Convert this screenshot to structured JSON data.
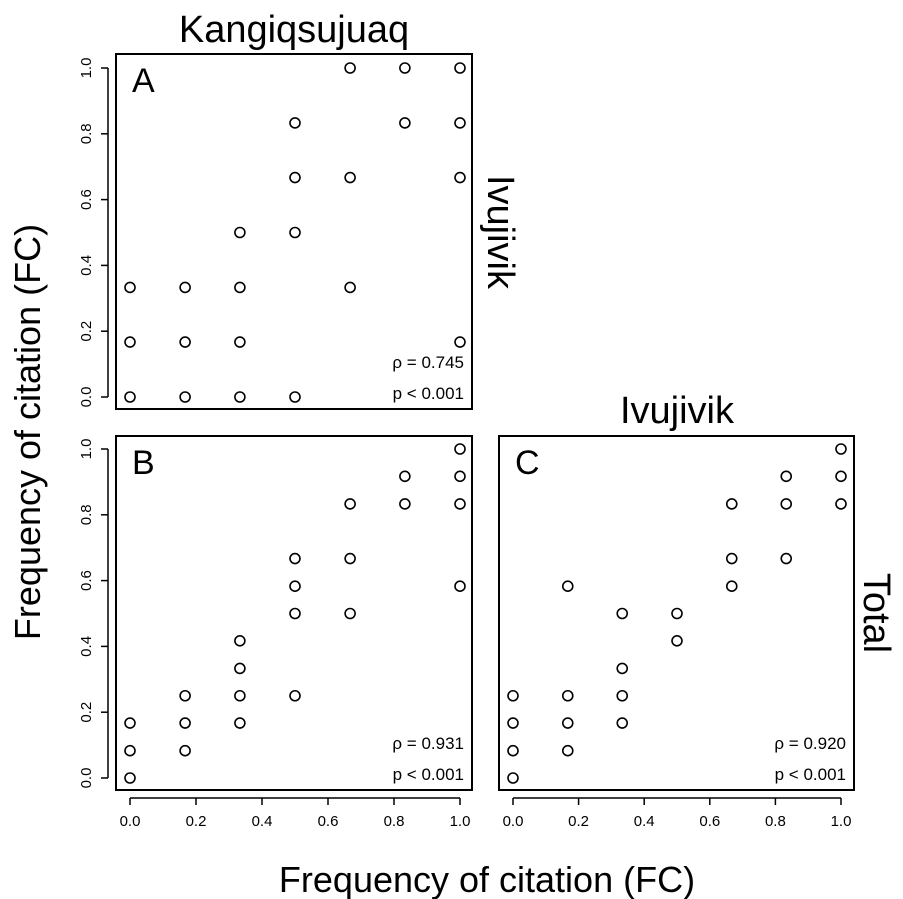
{
  "figure": {
    "ylabel": "Frequency of citation (FC)",
    "xlabel": "Frequency of citation (FC)"
  },
  "chart_data": [
    {
      "type": "scatter",
      "panel": "A",
      "title": "Kangiqsujuaq",
      "side_label": "Ivujivik",
      "rho": "ρ = 0.745",
      "p": "p < 0.001",
      "xlim": [
        0,
        1
      ],
      "ylim": [
        0,
        1
      ],
      "x_ticks_shown": false,
      "y_ticks": [
        "0.0",
        "0.2",
        "0.4",
        "0.6",
        "0.8",
        "1.0"
      ],
      "points": [
        [
          0,
          0
        ],
        [
          0,
          0.167
        ],
        [
          0,
          0.333
        ],
        [
          0.167,
          0
        ],
        [
          0.167,
          0.167
        ],
        [
          0.167,
          0.333
        ],
        [
          0.333,
          0
        ],
        [
          0.333,
          0.167
        ],
        [
          0.333,
          0.333
        ],
        [
          0.333,
          0.5
        ],
        [
          0.5,
          0
        ],
        [
          0.5,
          0.5
        ],
        [
          0.5,
          0.667
        ],
        [
          0.5,
          0.833
        ],
        [
          0.667,
          0.333
        ],
        [
          0.667,
          0.667
        ],
        [
          0.667,
          1.0
        ],
        [
          0.833,
          0.833
        ],
        [
          0.833,
          1.0
        ],
        [
          1.0,
          0.167
        ],
        [
          1.0,
          0.667
        ],
        [
          1.0,
          0.833
        ],
        [
          1.0,
          1.0
        ]
      ]
    },
    {
      "type": "scatter",
      "panel": "B",
      "title": "",
      "side_label": "",
      "rho": "ρ = 0.931",
      "p": "p < 0.001",
      "xlim": [
        0,
        1
      ],
      "ylim": [
        0,
        1
      ],
      "x_ticks": [
        "0.0",
        "0.2",
        "0.4",
        "0.6",
        "0.8",
        "1.0"
      ],
      "y_ticks": [
        "0.0",
        "0.2",
        "0.4",
        "0.6",
        "0.8",
        "1.0"
      ],
      "points": [
        [
          0,
          0
        ],
        [
          0,
          0.083
        ],
        [
          0,
          0.167
        ],
        [
          0.167,
          0.083
        ],
        [
          0.167,
          0.167
        ],
        [
          0.167,
          0.25
        ],
        [
          0.333,
          0.167
        ],
        [
          0.333,
          0.25
        ],
        [
          0.333,
          0.333
        ],
        [
          0.333,
          0.417
        ],
        [
          0.5,
          0.25
        ],
        [
          0.5,
          0.5
        ],
        [
          0.5,
          0.583
        ],
        [
          0.5,
          0.667
        ],
        [
          0.667,
          0.5
        ],
        [
          0.667,
          0.667
        ],
        [
          0.667,
          0.833
        ],
        [
          0.833,
          0.833
        ],
        [
          0.833,
          0.917
        ],
        [
          1.0,
          0.583
        ],
        [
          1.0,
          0.833
        ],
        [
          1.0,
          0.917
        ],
        [
          1.0,
          1.0
        ]
      ]
    },
    {
      "type": "scatter",
      "panel": "C",
      "title": "Ivujivik",
      "side_label": "Total",
      "rho": "ρ = 0.920",
      "p": "p < 0.001",
      "xlim": [
        0,
        1
      ],
      "ylim": [
        0,
        1
      ],
      "x_ticks": [
        "0.0",
        "0.2",
        "0.4",
        "0.6",
        "0.8",
        "1.0"
      ],
      "y_ticks_shown": false,
      "points": [
        [
          0,
          0
        ],
        [
          0,
          0.083
        ],
        [
          0,
          0.167
        ],
        [
          0,
          0.25
        ],
        [
          0.167,
          0.083
        ],
        [
          0.167,
          0.167
        ],
        [
          0.167,
          0.25
        ],
        [
          0.167,
          0.583
        ],
        [
          0.333,
          0.167
        ],
        [
          0.333,
          0.25
        ],
        [
          0.333,
          0.333
        ],
        [
          0.333,
          0.5
        ],
        [
          0.5,
          0.417
        ],
        [
          0.5,
          0.5
        ],
        [
          0.667,
          0.583
        ],
        [
          0.667,
          0.667
        ],
        [
          0.667,
          0.833
        ],
        [
          0.833,
          0.667
        ],
        [
          0.833,
          0.833
        ],
        [
          0.833,
          0.917
        ],
        [
          1.0,
          0.833
        ],
        [
          1.0,
          0.917
        ],
        [
          1.0,
          1.0
        ]
      ]
    }
  ]
}
